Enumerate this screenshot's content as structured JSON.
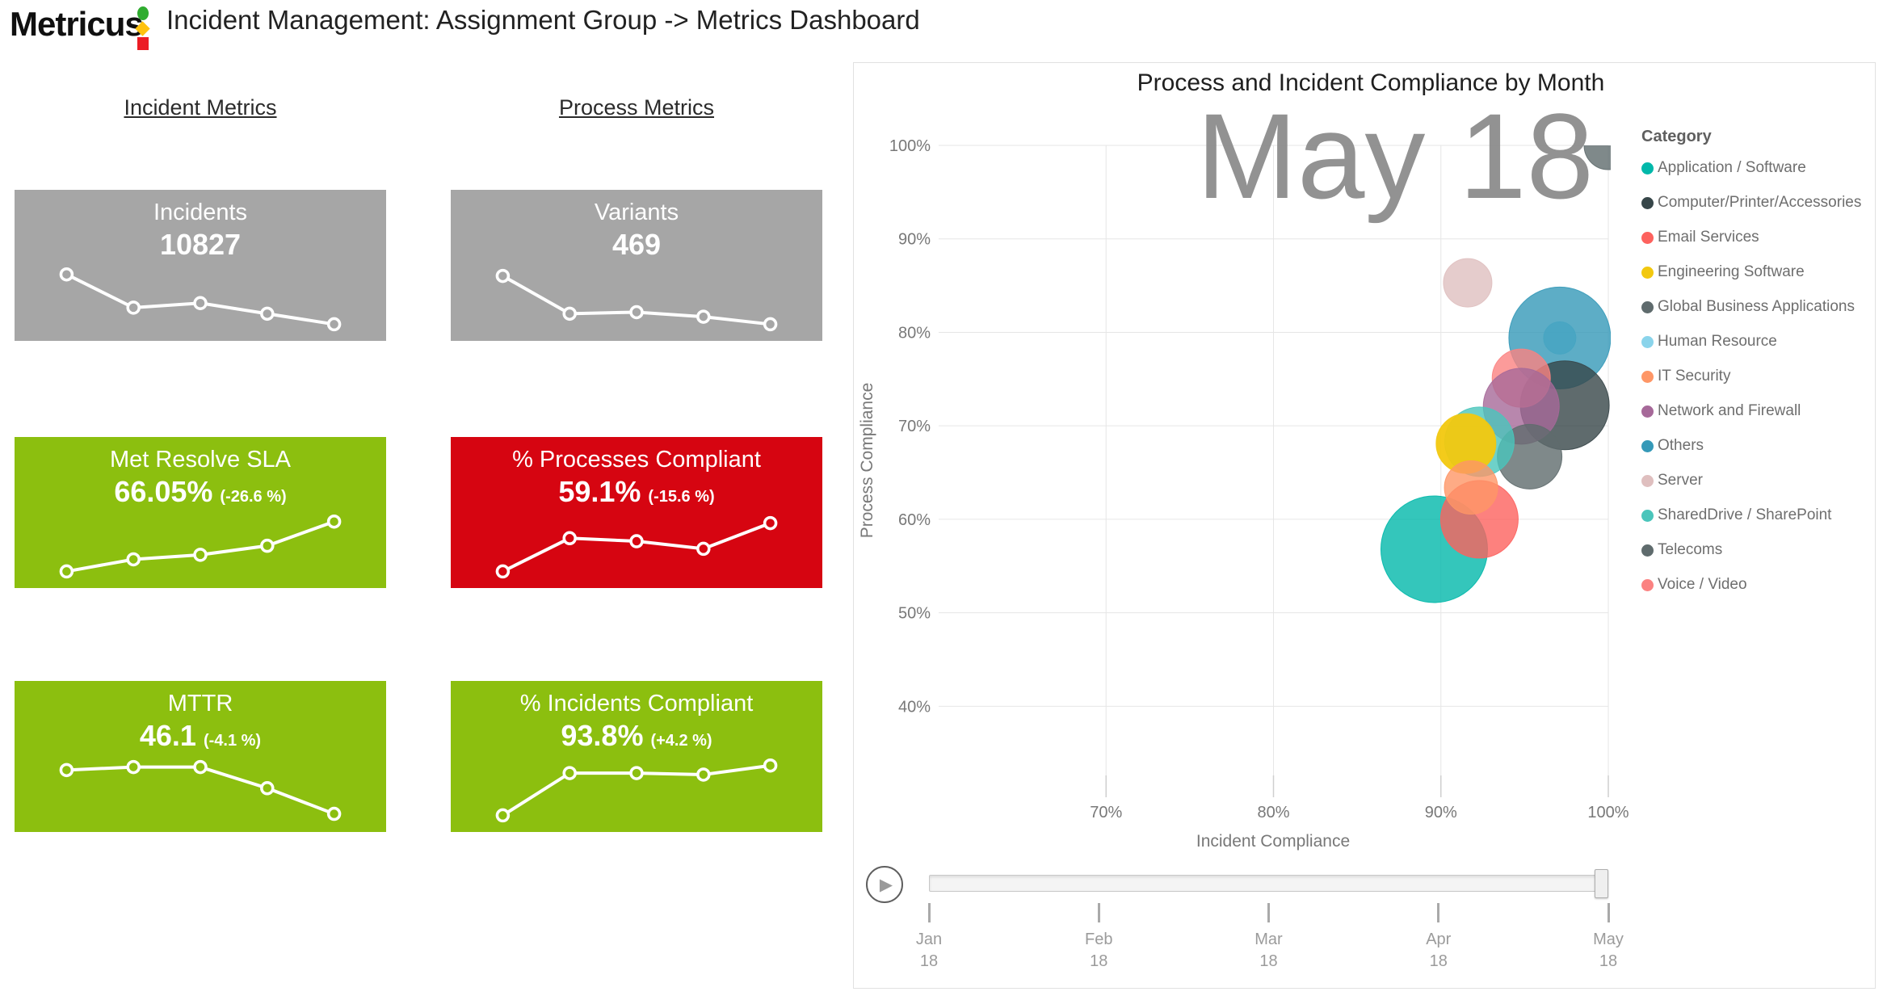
{
  "header": {
    "logo_text": "Metricus",
    "logo_colors": {
      "circle": "#2fac2f",
      "diamond": "#ffc20e",
      "square": "#ec1c24"
    },
    "title": "Incident Management: Assignment Group -> Metrics Dashboard"
  },
  "metric_columns": [
    {
      "heading": "Incident Metrics",
      "cards": [
        {
          "title": "Incidents",
          "value": "10827",
          "delta": "",
          "bg": "#A6A6A6",
          "sparkline": [
            [
              14,
              56
            ],
            [
              32,
              78
            ],
            [
              50,
              75
            ],
            [
              68,
              82
            ],
            [
              86,
              89
            ]
          ]
        },
        {
          "title": "Met Resolve SLA",
          "value": "66.05%",
          "delta": "(-26.6 %)",
          "bg": "#8CBF0F",
          "sparkline": [
            [
              14,
              89
            ],
            [
              32,
              81
            ],
            [
              50,
              78
            ],
            [
              68,
              72
            ],
            [
              86,
              56
            ]
          ]
        },
        {
          "title": "MTTR",
          "value": "46.1",
          "delta": "(-4.1 %)",
          "bg": "#8CBF0F",
          "sparkline": [
            [
              14,
              59
            ],
            [
              32,
              57
            ],
            [
              50,
              57
            ],
            [
              68,
              71
            ],
            [
              86,
              88
            ]
          ]
        }
      ]
    },
    {
      "heading": "Process Metrics",
      "cards": [
        {
          "title": "Variants",
          "value": "469",
          "delta": "",
          "bg": "#A6A6A6",
          "sparkline": [
            [
              14,
              57
            ],
            [
              32,
              82
            ],
            [
              50,
              81
            ],
            [
              68,
              84
            ],
            [
              86,
              89
            ]
          ]
        },
        {
          "title": "% Processes Compliant",
          "value": "59.1%",
          "delta": "(-15.6 %)",
          "bg": "#D60511",
          "sparkline": [
            [
              14,
              89
            ],
            [
              32,
              67
            ],
            [
              50,
              69
            ],
            [
              68,
              74
            ],
            [
              86,
              57
            ]
          ]
        },
        {
          "title": "% Incidents Compliant",
          "value": "93.8%",
          "delta": "(+4.2 %)",
          "bg": "#8CBF0F",
          "sparkline": [
            [
              14,
              89
            ],
            [
              32,
              61
            ],
            [
              50,
              61
            ],
            [
              68,
              62
            ],
            [
              86,
              56
            ]
          ]
        }
      ]
    }
  ],
  "chart_data": {
    "type": "scatter",
    "title": "Process and Incident Compliance by Month",
    "xlabel": "Incident Compliance",
    "ylabel": "Process Compliance",
    "watermark": "May 18",
    "legend_title": "Category",
    "x_tick_values": [
      70,
      80,
      90,
      100
    ],
    "x_tick_labels": [
      "70%",
      "80%",
      "90%",
      "100%"
    ],
    "y_tick_values": [
      100,
      90,
      80,
      70,
      60,
      50,
      40
    ],
    "y_tick_labels": [
      "100%",
      "90%",
      "80%",
      "70%",
      "60%",
      "50%",
      "40%"
    ],
    "x_range": [
      60,
      100
    ],
    "y_range": [
      32.6,
      100
    ],
    "grid": true,
    "legend_position": "right",
    "series": [
      {
        "name": "Application / Software",
        "color": "#01B8AA",
        "x": 89.6,
        "y": 56.8,
        "r": 66,
        "z": 10
      },
      {
        "name": "Computer/Printer/Accessories",
        "color": "#374649",
        "x": 97.4,
        "y": 72.2,
        "r": 55,
        "z": 5
      },
      {
        "name": "Email Services",
        "color": "#FD625E",
        "x": 92.3,
        "y": 60.0,
        "r": 48,
        "z": 11
      },
      {
        "name": "Engineering Software",
        "color": "#F2C80F",
        "x": 91.5,
        "y": 68.1,
        "r": 37,
        "z": 12
      },
      {
        "name": "Global Business Applications",
        "color": "#5F6B6D",
        "x": 95.3,
        "y": 66.7,
        "r": 40,
        "z": 8
      },
      {
        "name": "Human Resource",
        "color": "#8AD4EB",
        "x": 97.1,
        "y": 79.4,
        "r": 20,
        "z": 1
      },
      {
        "name": "IT Security",
        "color": "#FE9666",
        "x": 91.8,
        "y": 63.4,
        "r": 33,
        "z": 13
      },
      {
        "name": "Network and Firewall",
        "color": "#A66999",
        "x": 94.8,
        "y": 72.1,
        "r": 47,
        "z": 7
      },
      {
        "name": "Others",
        "color": "#3599B8",
        "x": 97.1,
        "y": 79.4,
        "r": 63,
        "z": 3
      },
      {
        "name": "Server",
        "color": "#DFBFBF",
        "x": 91.6,
        "y": 85.3,
        "r": 30,
        "z": 4
      },
      {
        "name": "SharedDrive / SharePoint",
        "color": "#4AC5BB",
        "x": 92.3,
        "y": 68.3,
        "r": 43,
        "z": 9
      },
      {
        "name": "Telecoms",
        "color": "#5F6B6D",
        "x": 100.0,
        "y": 100.0,
        "r": 30,
        "z": 2
      },
      {
        "name": "Voice / Video",
        "color": "#FB8281",
        "x": 94.8,
        "y": 75.1,
        "r": 36,
        "z": 6
      }
    ],
    "slider": {
      "play_icon": "play",
      "current": "May 18",
      "months": [
        {
          "month": "Jan",
          "year": "18"
        },
        {
          "month": "Feb",
          "year": "18"
        },
        {
          "month": "Mar",
          "year": "18"
        },
        {
          "month": "Apr",
          "year": "18"
        },
        {
          "month": "May",
          "year": "18"
        }
      ]
    }
  }
}
